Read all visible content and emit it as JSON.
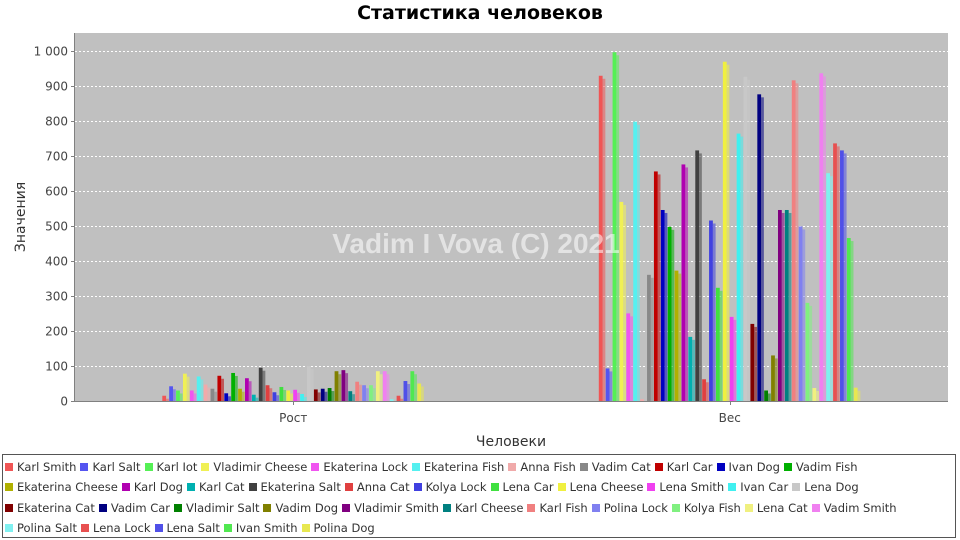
{
  "chart_data": {
    "type": "bar",
    "title": "Статистика человеков",
    "xlabel": "Человеки",
    "ylabel": "Значения",
    "watermark": "Vadim I Vova (C) 2021",
    "ylim": [
      0,
      1050
    ],
    "yticks": [
      0,
      100,
      200,
      300,
      400,
      500,
      600,
      700,
      800,
      900,
      1000
    ],
    "ytick_labels": [
      "0",
      "100",
      "200",
      "300",
      "400",
      "500",
      "600",
      "700",
      "800",
      "900",
      "1 000"
    ],
    "categories": [
      "Рост",
      "Вес"
    ],
    "grid": true,
    "legend_position": "bottom",
    "series": [
      {
        "name": "Karl Smith",
        "color": "#f05555",
        "values": [
          15,
          928
        ]
      },
      {
        "name": "Karl Salt",
        "color": "#5555f0",
        "values": [
          42,
          93
        ]
      },
      {
        "name": "Karl Iot",
        "color": "#55f055",
        "values": [
          30,
          995
        ]
      },
      {
        "name": "Vladimir Cheese",
        "color": "#f0f055",
        "values": [
          78,
          568
        ]
      },
      {
        "name": "Ekaterina Lock",
        "color": "#f055f0",
        "values": [
          30,
          250
        ]
      },
      {
        "name": "Ekaterina Fish",
        "color": "#55f0f0",
        "values": [
          70,
          797
        ]
      },
      {
        "name": "Anna Fish",
        "color": "#f0aaaa",
        "values": [
          47,
          5
        ]
      },
      {
        "name": "Vadim Cat",
        "color": "#888888",
        "values": [
          35,
          360
        ]
      },
      {
        "name": "Karl Car",
        "color": "#c00000",
        "values": [
          72,
          655
        ]
      },
      {
        "name": "Ivan Dog",
        "color": "#0000c0",
        "values": [
          22,
          545
        ]
      },
      {
        "name": "Vadim Fish",
        "color": "#00b000",
        "values": [
          80,
          497
        ]
      },
      {
        "name": "Ekaterina Cheese",
        "color": "#b0b000",
        "values": [
          35,
          372
        ]
      },
      {
        "name": "Karl Dog",
        "color": "#b000b0",
        "values": [
          65,
          675
        ]
      },
      {
        "name": "Karl Cat",
        "color": "#00b0b0",
        "values": [
          18,
          183
        ]
      },
      {
        "name": "Ekaterina Salt",
        "color": "#404040",
        "values": [
          95,
          715
        ]
      },
      {
        "name": "Anna Cat",
        "color": "#e04040",
        "values": [
          45,
          62
        ]
      },
      {
        "name": "Kolya Lock",
        "color": "#4040e0",
        "values": [
          25,
          515
        ]
      },
      {
        "name": "Lena Car",
        "color": "#40e040",
        "values": [
          40,
          323
        ]
      },
      {
        "name": "Lena Cheese",
        "color": "#f0f040",
        "values": [
          30,
          968
        ]
      },
      {
        "name": "Lena Smith",
        "color": "#f040f0",
        "values": [
          32,
          240
        ]
      },
      {
        "name": "Ivan Car",
        "color": "#40f0f0",
        "values": [
          20,
          763
        ]
      },
      {
        "name": "Lena Dog",
        "color": "#c8c8c8",
        "values": [
          100,
          925
        ]
      },
      {
        "name": "Ekaterina Cat",
        "color": "#800000",
        "values": [
          33,
          220
        ]
      },
      {
        "name": "Vadim Car",
        "color": "#000080",
        "values": [
          35,
          875
        ]
      },
      {
        "name": "Vladimir Salt",
        "color": "#008000",
        "values": [
          37,
          30
        ]
      },
      {
        "name": "Vadim Dog",
        "color": "#808000",
        "values": [
          85,
          130
        ]
      },
      {
        "name": "Vladimir Smith",
        "color": "#800080",
        "values": [
          88,
          545
        ]
      },
      {
        "name": "Karl Cheese",
        "color": "#008080",
        "values": [
          28,
          545
        ]
      },
      {
        "name": "Karl Fish",
        "color": "#f08080",
        "values": [
          55,
          915
        ]
      },
      {
        "name": "Polina Lock",
        "color": "#8080f0",
        "values": [
          45,
          498
        ]
      },
      {
        "name": "Kolya Fish",
        "color": "#80f080",
        "values": [
          45,
          280
        ]
      },
      {
        "name": "Lena Cat",
        "color": "#f0f080",
        "values": [
          85,
          37
        ]
      },
      {
        "name": "Vadim Smith",
        "color": "#f080f0",
        "values": [
          85,
          935
        ]
      },
      {
        "name": "Polina Salt",
        "color": "#80f0f0",
        "values": [
          5,
          650
        ]
      },
      {
        "name": "Lena Lock",
        "color": "#e85050",
        "values": [
          15,
          735
        ]
      },
      {
        "name": "Lena Salt",
        "color": "#5050e8",
        "values": [
          57,
          715
        ]
      },
      {
        "name": "Ivan Smith",
        "color": "#50e850",
        "values": [
          85,
          465
        ]
      },
      {
        "name": "Polina Dog",
        "color": "#e8e850",
        "values": [
          50,
          38
        ]
      }
    ]
  }
}
